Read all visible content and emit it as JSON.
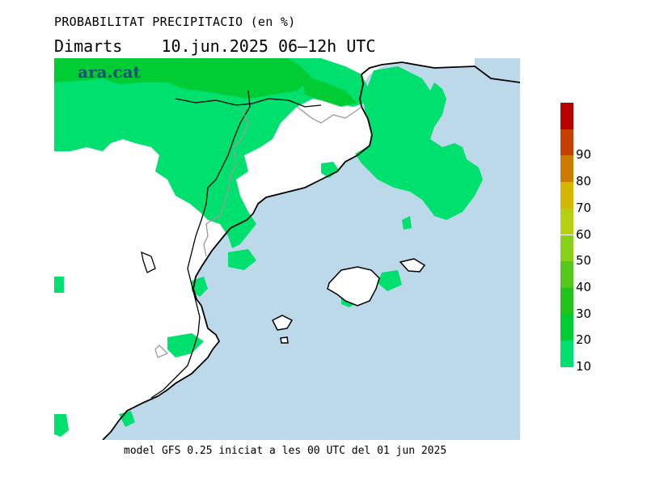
{
  "header": {
    "title": "PROBABILITAT PRECIPITACIO (en %)",
    "subtitle": "Dimarts    10.jun.2025 06—12h UTC"
  },
  "logo": {
    "text": "ara.cat"
  },
  "footer": {
    "text": "model GFS 0.25 iniciat a les 00 UTC del 01 jun 2025"
  },
  "legend": {
    "levels": [
      {
        "value": "10",
        "color": "#00e06e"
      },
      {
        "value": "20",
        "color": "#00cc33"
      },
      {
        "value": "30",
        "color": "#22c41b"
      },
      {
        "value": "40",
        "color": "#55c81c"
      },
      {
        "value": "50",
        "color": "#88d11b"
      },
      {
        "value": "60",
        "color": "#b5d10f"
      },
      {
        "value": "70",
        "color": "#d5b700"
      },
      {
        "value": "80",
        "color": "#cc7a00"
      },
      {
        "value": "90",
        "color": "#c84000"
      },
      {
        "value": "",
        "color": "#b80000"
      }
    ]
  },
  "colors": {
    "sea": "#bcd9ea",
    "land": "#ffffff",
    "prob10": "#00e06e",
    "prob20": "#00cc33",
    "coast": "#000000",
    "border": "#9a9a9a"
  }
}
